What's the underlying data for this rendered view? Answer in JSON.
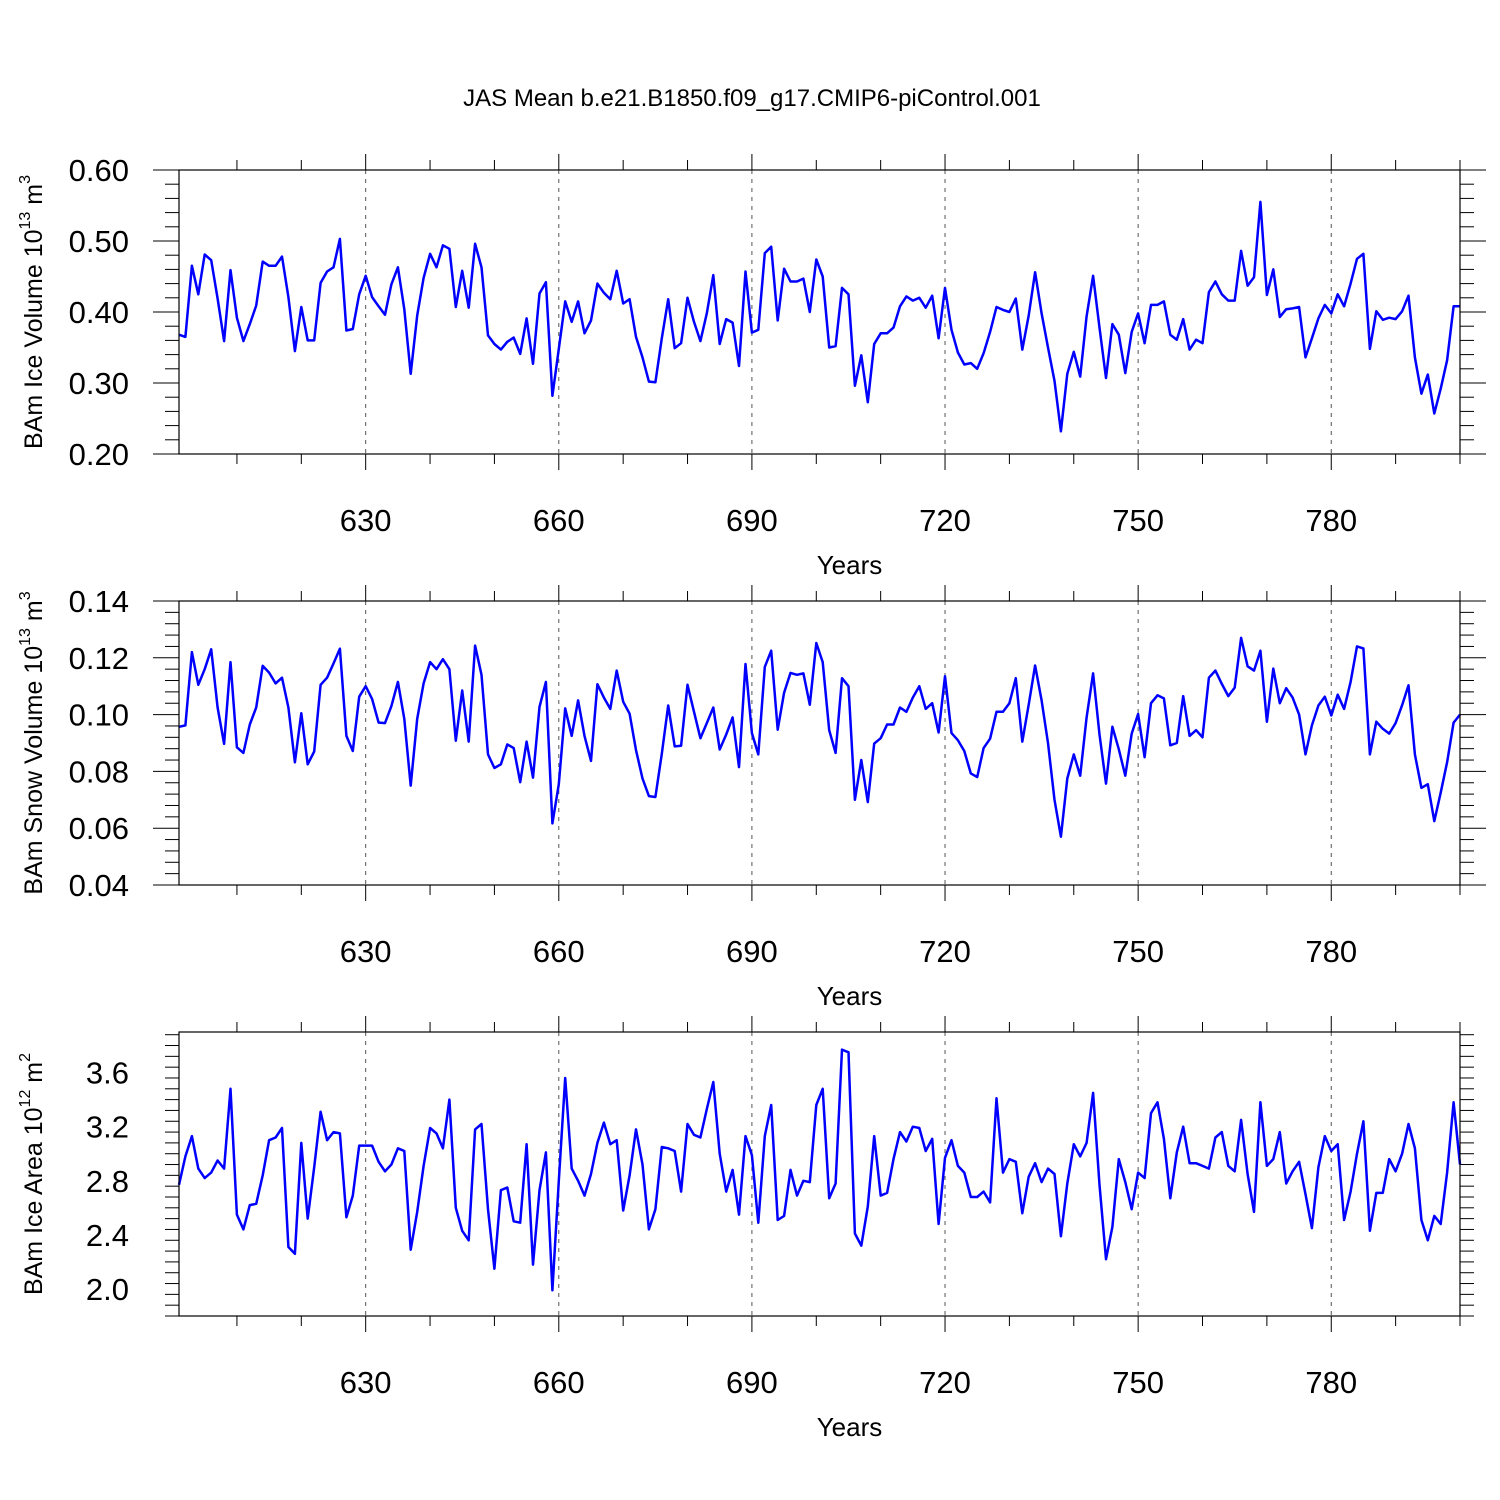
{
  "title": "JAS Mean b.e21.B1850.f09_g17.CMIP6-piControl.001",
  "colors": {
    "line": "#0000ff",
    "axis": "#000000",
    "grid": "#555555"
  },
  "chart_data": [
    {
      "type": "line",
      "xlabel": "Years",
      "ylabel": {
        "prefix": "BAm Ice Volume 10",
        "exp": "13",
        "unit": " m",
        "unit_exp": "3"
      },
      "ylim": [
        0.2,
        0.6
      ],
      "yticks": [
        "0.20",
        "0.30",
        "0.40",
        "0.50",
        "0.60"
      ],
      "xlim": [
        601,
        800
      ],
      "xticks": [
        "630",
        "660",
        "690",
        "720",
        "750",
        "780"
      ],
      "x_start": 601,
      "values": [
        0.368,
        0.365,
        0.465,
        0.425,
        0.481,
        0.473,
        0.419,
        0.359,
        0.459,
        0.392,
        0.359,
        0.383,
        0.409,
        0.471,
        0.465,
        0.465,
        0.478,
        0.421,
        0.345,
        0.407,
        0.36,
        0.36,
        0.441,
        0.457,
        0.463,
        0.503,
        0.374,
        0.376,
        0.425,
        0.451,
        0.421,
        0.408,
        0.396,
        0.439,
        0.463,
        0.404,
        0.313,
        0.395,
        0.448,
        0.482,
        0.463,
        0.494,
        0.489,
        0.407,
        0.458,
        0.406,
        0.496,
        0.463,
        0.367,
        0.355,
        0.347,
        0.358,
        0.364,
        0.341,
        0.391,
        0.327,
        0.426,
        0.442,
        0.282,
        0.348,
        0.415,
        0.386,
        0.415,
        0.37,
        0.388,
        0.44,
        0.427,
        0.418,
        0.458,
        0.412,
        0.418,
        0.365,
        0.336,
        0.302,
        0.301,
        0.363,
        0.418,
        0.349,
        0.356,
        0.42,
        0.386,
        0.359,
        0.398,
        0.452,
        0.355,
        0.39,
        0.385,
        0.324,
        0.457,
        0.371,
        0.375,
        0.483,
        0.492,
        0.388,
        0.461,
        0.443,
        0.443,
        0.447,
        0.4,
        0.474,
        0.45,
        0.35,
        0.352,
        0.434,
        0.425,
        0.296,
        0.339,
        0.273,
        0.355,
        0.37,
        0.37,
        0.378,
        0.408,
        0.422,
        0.416,
        0.42,
        0.406,
        0.423,
        0.363,
        0.434,
        0.375,
        0.343,
        0.326,
        0.328,
        0.32,
        0.342,
        0.372,
        0.407,
        0.403,
        0.4,
        0.419,
        0.347,
        0.395,
        0.456,
        0.398,
        0.35,
        0.303,
        0.232,
        0.313,
        0.344,
        0.309,
        0.394,
        0.451,
        0.378,
        0.307,
        0.383,
        0.368,
        0.314,
        0.372,
        0.398,
        0.356,
        0.41,
        0.41,
        0.415,
        0.368,
        0.361,
        0.39,
        0.347,
        0.361,
        0.356,
        0.428,
        0.443,
        0.425,
        0.416,
        0.416,
        0.486,
        0.437,
        0.449,
        0.555,
        0.424,
        0.46,
        0.393,
        0.404,
        0.405,
        0.407,
        0.336,
        0.363,
        0.391,
        0.41,
        0.398,
        0.425,
        0.408,
        0.44,
        0.475,
        0.482,
        0.348,
        0.401,
        0.389,
        0.392,
        0.39,
        0.401,
        0.423,
        0.336,
        0.285,
        0.312,
        0.257,
        0.292,
        0.332,
        0.408,
        0.408
      ]
    },
    {
      "type": "line",
      "xlabel": "Years",
      "ylabel": {
        "prefix": "BAm Snow Volume 10",
        "exp": "13",
        "unit": " m",
        "unit_exp": "3"
      },
      "ylim": [
        0.04,
        0.14
      ],
      "yticks": [
        "0.04",
        "0.06",
        "0.08",
        "0.10",
        "0.12",
        "0.14"
      ],
      "xlim": [
        601,
        800
      ],
      "xticks": [
        "630",
        "660",
        "690",
        "720",
        "750",
        "780"
      ],
      "x_start": 601,
      "values": [
        0.0957,
        0.0962,
        0.122,
        0.1105,
        0.116,
        0.123,
        0.1025,
        0.0897,
        0.1185,
        0.0885,
        0.0865,
        0.0965,
        0.1025,
        0.1172,
        0.1148,
        0.111,
        0.113,
        0.1025,
        0.0832,
        0.1005,
        0.0825,
        0.087,
        0.1105,
        0.113,
        0.118,
        0.1232,
        0.0925,
        0.0872,
        0.1063,
        0.11,
        0.1055,
        0.0972,
        0.097,
        0.103,
        0.1115,
        0.0985,
        0.075,
        0.0985,
        0.111,
        0.1185,
        0.116,
        0.1195,
        0.116,
        0.0908,
        0.1085,
        0.0905,
        0.1243,
        0.114,
        0.086,
        0.0812,
        0.0825,
        0.0895,
        0.0882,
        0.0762,
        0.0905,
        0.0778,
        0.1027,
        0.1115,
        0.0617,
        0.0755,
        0.1022,
        0.0925,
        0.105,
        0.0925,
        0.0837,
        0.1107,
        0.106,
        0.102,
        0.1155,
        0.1045,
        0.1003,
        0.0875,
        0.0775,
        0.0713,
        0.071,
        0.0862,
        0.1032,
        0.0888,
        0.089,
        0.1105,
        0.101,
        0.0917,
        0.097,
        0.1025,
        0.0877,
        0.093,
        0.099,
        0.0815,
        0.1178,
        0.0935,
        0.086,
        0.1168,
        0.1225,
        0.0947,
        0.1077,
        0.1147,
        0.114,
        0.1145,
        0.1035,
        0.1252,
        0.1185,
        0.0945,
        0.0865,
        0.1128,
        0.11,
        0.07,
        0.084,
        0.0692,
        0.0898,
        0.0917,
        0.0965,
        0.0965,
        0.1025,
        0.101,
        0.106,
        0.11,
        0.102,
        0.104,
        0.0937,
        0.1135,
        0.0935,
        0.091,
        0.0872,
        0.0793,
        0.078,
        0.0882,
        0.0915,
        0.101,
        0.101,
        0.104,
        0.1128,
        0.0905,
        0.1035,
        0.1173,
        0.105,
        0.09,
        0.07,
        0.057,
        0.0775,
        0.086,
        0.0785,
        0.099,
        0.1145,
        0.093,
        0.0757,
        0.0957,
        0.0878,
        0.0785,
        0.0933,
        0.1002,
        0.085,
        0.104,
        0.1068,
        0.1057,
        0.0892,
        0.09,
        0.1065,
        0.0925,
        0.0945,
        0.092,
        0.113,
        0.1155,
        0.1108,
        0.1065,
        0.1095,
        0.127,
        0.117,
        0.1155,
        0.1225,
        0.0975,
        0.1162,
        0.104,
        0.1093,
        0.106,
        0.1,
        0.086,
        0.0962,
        0.1032,
        0.1063,
        0.0997,
        0.107,
        0.102,
        0.1115,
        0.124,
        0.1233,
        0.086,
        0.0975,
        0.095,
        0.0933,
        0.097,
        0.1033,
        0.1103,
        0.086,
        0.0742,
        0.0755,
        0.0625,
        0.0725,
        0.0832,
        0.0972,
        0.1
      ]
    },
    {
      "type": "line",
      "xlabel": "Years",
      "ylabel": {
        "prefix": "BAm Ice Area 10",
        "exp": "12",
        "unit": " m",
        "unit_exp": "2"
      },
      "ylim": [
        1.8,
        3.9
      ],
      "yticks": [
        "2.0",
        "2.4",
        "2.8",
        "3.2",
        "3.6"
      ],
      "xlim": [
        601,
        800
      ],
      "xticks": [
        "630",
        "660",
        "690",
        "720",
        "750",
        "780"
      ],
      "x_start": 601,
      "values": [
        2.77,
        2.98,
        3.13,
        2.89,
        2.82,
        2.86,
        2.95,
        2.89,
        3.48,
        2.55,
        2.44,
        2.62,
        2.63,
        2.84,
        3.1,
        3.12,
        3.19,
        2.31,
        2.26,
        3.08,
        2.52,
        2.9,
        3.31,
        3.1,
        3.16,
        3.15,
        2.53,
        2.69,
        3.06,
        3.06,
        3.06,
        2.94,
        2.87,
        2.92,
        3.04,
        3.02,
        2.29,
        2.57,
        2.91,
        3.19,
        3.15,
        3.04,
        3.4,
        2.6,
        2.43,
        2.36,
        3.18,
        3.22,
        2.59,
        2.15,
        2.73,
        2.75,
        2.5,
        2.49,
        3.07,
        2.18,
        2.73,
        3.01,
        1.99,
        2.8,
        3.56,
        2.89,
        2.8,
        2.69,
        2.85,
        3.08,
        3.23,
        3.07,
        3.1,
        2.58,
        2.84,
        3.18,
        2.92,
        2.44,
        2.59,
        3.05,
        3.04,
        3.02,
        2.72,
        3.22,
        3.14,
        3.12,
        3.33,
        3.53,
        3.0,
        2.72,
        2.88,
        2.55,
        3.13,
        2.99,
        2.49,
        3.13,
        3.36,
        2.51,
        2.54,
        2.88,
        2.69,
        2.8,
        2.79,
        3.36,
        3.48,
        2.67,
        2.78,
        3.77,
        3.75,
        2.41,
        2.32,
        2.61,
        3.13,
        2.69,
        2.71,
        2.96,
        3.16,
        3.09,
        3.2,
        3.19,
        3.02,
        3.11,
        2.48,
        2.97,
        3.1,
        2.91,
        2.86,
        2.68,
        2.68,
        2.72,
        2.64,
        3.41,
        2.86,
        2.96,
        2.94,
        2.56,
        2.83,
        2.93,
        2.79,
        2.89,
        2.85,
        2.39,
        2.78,
        3.07,
        2.98,
        3.08,
        3.45,
        2.77,
        2.22,
        2.46,
        2.96,
        2.79,
        2.59,
        2.86,
        2.82,
        3.3,
        3.38,
        3.11,
        2.67,
        3.01,
        3.2,
        2.93,
        2.93,
        2.91,
        2.89,
        3.12,
        3.16,
        2.91,
        2.87,
        3.25,
        2.85,
        2.57,
        3.38,
        2.91,
        2.96,
        3.16,
        2.78,
        2.87,
        2.94,
        2.7,
        2.45,
        2.9,
        3.13,
        3.02,
        3.07,
        2.51,
        2.72,
        3.0,
        3.24,
        2.43,
        2.71,
        2.71,
        2.96,
        2.87,
        3.0,
        3.22,
        3.04,
        2.51,
        2.36,
        2.54,
        2.48,
        2.86,
        3.38,
        2.92
      ]
    }
  ]
}
